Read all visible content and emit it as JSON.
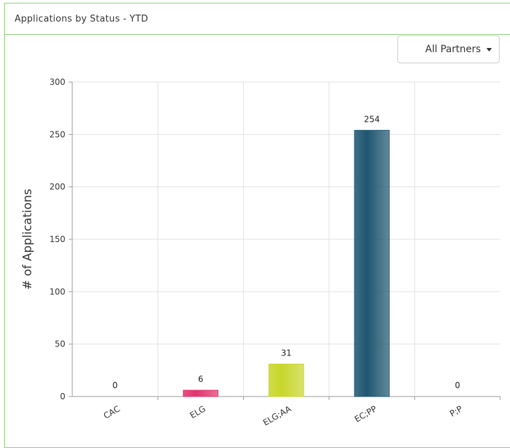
{
  "panel": {
    "title": "Applications by Status - YTD"
  },
  "filter": {
    "selected": "All Partners",
    "caret_icon": "chevron-down-icon"
  },
  "chart_data": {
    "type": "bar",
    "title": "",
    "xlabel": "",
    "ylabel": "# of Applications",
    "ylim": [
      0,
      300
    ],
    "yticks": [
      0,
      50,
      100,
      150,
      200,
      250,
      300
    ],
    "grid": true,
    "categories": [
      "CAC",
      "ELG",
      "ELG;AA",
      "EC;PP",
      "P;P"
    ],
    "values": [
      0,
      6,
      31,
      254,
      0
    ],
    "colors": [
      "#4a7fb5",
      "#e0336e",
      "#c8d62a",
      "#1f5670",
      "#7a7a7a"
    ]
  }
}
